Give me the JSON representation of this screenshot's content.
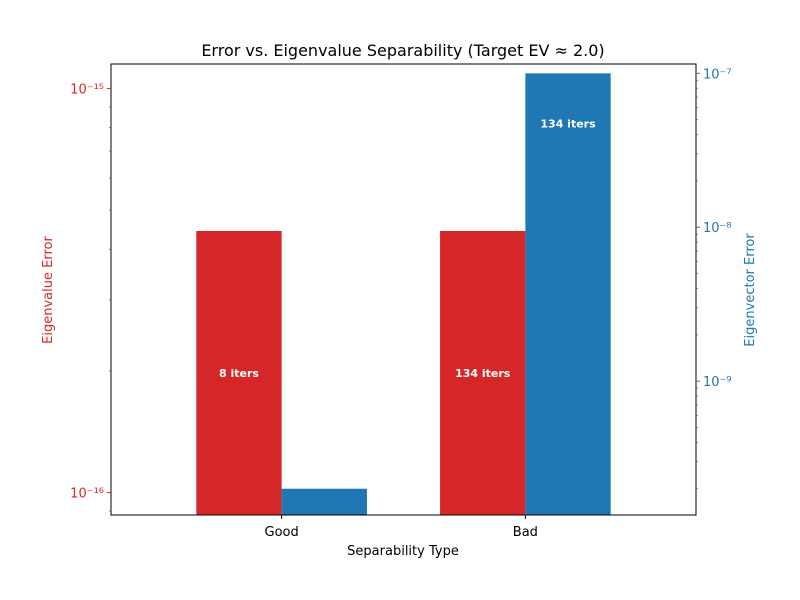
{
  "chart_data": {
    "type": "bar",
    "title": "Error vs. Eigenvalue Separability (Target EV ≈ 2.0)",
    "xlabel": "Separability Type",
    "categories": [
      "Good",
      "Bad"
    ],
    "y_left": {
      "label": "Eigenvalue Error",
      "scale": "log",
      "color": "#d62728",
      "ylim": [
        8.8e-17,
        1.15e-15
      ],
      "ticks": [
        {
          "value": 1e-16,
          "label": "10⁻¹⁶"
        },
        {
          "value": 1e-15,
          "label": "10⁻¹⁵"
        }
      ]
    },
    "y_right": {
      "label": "Eigenvector Error",
      "scale": "log",
      "color": "#1f77b4",
      "ylim": [
        1.35e-10,
        1.15e-07
      ],
      "ticks": [
        {
          "value": 1e-09,
          "label": "10⁻⁹"
        },
        {
          "value": 1e-08,
          "label": "10⁻⁸"
        },
        {
          "value": 1e-07,
          "label": "10⁻⁷"
        }
      ]
    },
    "series": [
      {
        "name": "Eigenvalue Error",
        "axis": "left",
        "color": "#d62728",
        "values": [
          4.44e-16,
          4.44e-16
        ],
        "labels": [
          "8 iters",
          "134 iters"
        ]
      },
      {
        "name": "Eigenvector Error",
        "axis": "right",
        "color": "#1f77b4",
        "values": [
          2e-10,
          1e-07
        ],
        "labels": [
          "",
          "134 iters"
        ]
      }
    ],
    "grid": false
  }
}
